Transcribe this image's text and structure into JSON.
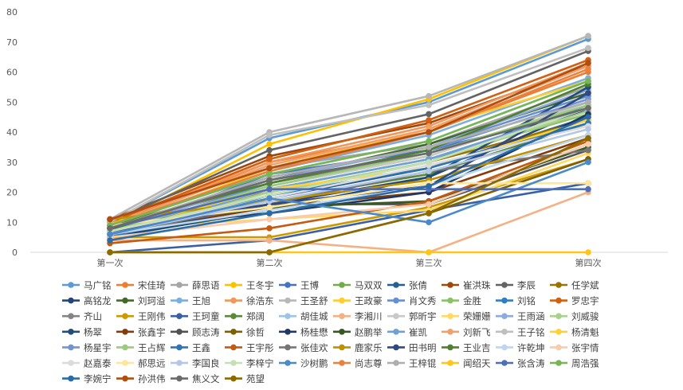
{
  "chart_data": {
    "type": "line",
    "title": "",
    "xlabel": "",
    "ylabel": "",
    "categories": [
      "第一次",
      "第二次",
      "第三次",
      "第四次"
    ],
    "ylim": [
      0,
      80
    ],
    "yticks": [
      0,
      10,
      20,
      30,
      40,
      50,
      60,
      70,
      80
    ],
    "grid": false,
    "legend_position": "bottom",
    "series": [
      {
        "name": "马广铭",
        "color": "#5B9BD5",
        "values": [
          10,
          38,
          50,
          71
        ]
      },
      {
        "name": "宋佳琦",
        "color": "#ED7D31",
        "values": [
          9,
          30,
          40,
          60
        ]
      },
      {
        "name": "薛思语",
        "color": "#A5A5A5",
        "values": [
          8,
          28,
          36,
          55
        ]
      },
      {
        "name": "王冬宇",
        "color": "#FFC000",
        "values": [
          9,
          36,
          51,
          72
        ]
      },
      {
        "name": "王博",
        "color": "#4472C4",
        "values": [
          6,
          26,
          34,
          47
        ]
      },
      {
        "name": "马双双",
        "color": "#70AD47",
        "values": [
          7,
          22,
          32,
          50
        ]
      },
      {
        "name": "张倩",
        "color": "#255E91",
        "values": [
          5,
          18,
          28,
          45
        ]
      },
      {
        "name": "崔洪珠",
        "color": "#9E480E",
        "values": [
          11,
          32,
          43,
          62
        ]
      },
      {
        "name": "李辰",
        "color": "#636363",
        "values": [
          10,
          34,
          46,
          67
        ]
      },
      {
        "name": "任学斌",
        "color": "#997300",
        "values": [
          8,
          20,
          30,
          44
        ]
      },
      {
        "name": "高铭龙",
        "color": "#264478",
        "values": [
          5,
          16,
          25,
          48
        ]
      },
      {
        "name": "刘珂溢",
        "color": "#43682B",
        "values": [
          7,
          24,
          36,
          53
        ]
      },
      {
        "name": "王旭",
        "color": "#7CAFDD",
        "values": [
          9,
          27,
          39,
          58
        ]
      },
      {
        "name": "徐浩东",
        "color": "#F1975A",
        "values": [
          10,
          30,
          42,
          63
        ]
      },
      {
        "name": "王圣舒",
        "color": "#B7B7B7",
        "values": [
          11,
          40,
          52,
          72
        ]
      },
      {
        "name": "王政豪",
        "color": "#FFCD33",
        "values": [
          8,
          28,
          41,
          57
        ]
      },
      {
        "name": "肖文秀",
        "color": "#698ED0",
        "values": [
          7,
          25,
          35,
          52
        ]
      },
      {
        "name": "金胜",
        "color": "#8CC168",
        "values": [
          6,
          21,
          31,
          46
        ]
      },
      {
        "name": "刘铭",
        "color": "#327DC2",
        "values": [
          5,
          19,
          30,
          49
        ]
      },
      {
        "name": "罗忠宇",
        "color": "#D26012",
        "values": [
          10,
          31,
          44,
          64
        ]
      },
      {
        "name": "齐山",
        "color": "#848484",
        "values": [
          8,
          23,
          33,
          48
        ]
      },
      {
        "name": "王刚伟",
        "color": "#CC9A00",
        "values": [
          5,
          5,
          15,
          31
        ]
      },
      {
        "name": "王珂童",
        "color": "#3A5FA5",
        "values": [
          0,
          4,
          14,
          23
        ]
      },
      {
        "name": "郑阔",
        "color": "#5A8A39",
        "values": [
          8,
          17,
          26,
          43
        ]
      },
      {
        "name": "胡佳城",
        "color": "#9DC3E6",
        "values": [
          9,
          26,
          37,
          57
        ]
      },
      {
        "name": "李湘川",
        "color": "#F4B183",
        "values": [
          4,
          4,
          0,
          20
        ]
      },
      {
        "name": "郭昕宇",
        "color": "#C9C9C9",
        "values": [
          7,
          22,
          32,
          50
        ]
      },
      {
        "name": "荣姗姗",
        "color": "#FFD966",
        "values": [
          8,
          11,
          14,
          33
        ]
      },
      {
        "name": "王雨涵",
        "color": "#8FAADC",
        "values": [
          7,
          24,
          35,
          54
        ]
      },
      {
        "name": "刘威骏",
        "color": "#A9D18E",
        "values": [
          6,
          20,
          30,
          47
        ]
      },
      {
        "name": "杨翠",
        "color": "#1F4E79",
        "values": [
          5,
          14,
          25,
          55
        ]
      },
      {
        "name": "张鑫宇",
        "color": "#843C0C",
        "values": [
          6,
          15,
          20,
          38
        ]
      },
      {
        "name": "顾志涛",
        "color": "#525252",
        "values": [
          8,
          16,
          16,
          34
        ]
      },
      {
        "name": "徐哲",
        "color": "#7F6000",
        "values": [
          0,
          0,
          13,
          31
        ]
      },
      {
        "name": "杨桂懋",
        "color": "#203864",
        "values": [
          8,
          13,
          20,
          46
        ]
      },
      {
        "name": "赵鹏举",
        "color": "#385723",
        "values": [
          8,
          15,
          17,
          35
        ]
      },
      {
        "name": "崔凯",
        "color": "#6FA0D6",
        "values": [
          5,
          21,
          31,
          48
        ]
      },
      {
        "name": "刘新飞",
        "color": "#F2A06B",
        "values": [
          9,
          29,
          41,
          62
        ]
      },
      {
        "name": "王子铭",
        "color": "#BFBFBF",
        "values": [
          10,
          39,
          49,
          68
        ]
      },
      {
        "name": "杨清魁",
        "color": "#FFD233",
        "values": [
          7,
          21,
          28,
          44
        ]
      },
      {
        "name": "杨星宇",
        "color": "#7094D4",
        "values": [
          6,
          23,
          34,
          51
        ]
      },
      {
        "name": "王占辉",
        "color": "#9ACC7B",
        "values": [
          7,
          22,
          33,
          49
        ]
      },
      {
        "name": "王鑫",
        "color": "#2E75B6",
        "values": [
          5,
          19,
          28,
          43
        ]
      },
      {
        "name": "王宇彤",
        "color": "#C55A11",
        "values": [
          3,
          8,
          17,
          37
        ]
      },
      {
        "name": "张佳欢",
        "color": "#767676",
        "values": [
          6,
          16,
          27,
          34
        ]
      },
      {
        "name": "鹿家乐",
        "color": "#BF9000",
        "values": [
          11,
          17,
          24,
          39
        ]
      },
      {
        "name": "田书明",
        "color": "#2F4A80",
        "values": [
          7,
          16,
          22,
          53
        ]
      },
      {
        "name": "王业吉",
        "color": "#4F7F2F",
        "values": [
          9,
          23,
          34,
          56
        ]
      },
      {
        "name": "许乾坤",
        "color": "#BDD7EE",
        "values": [
          6,
          14,
          22,
          39
        ]
      },
      {
        "name": "张宇情",
        "color": "#F8CBAD",
        "values": [
          5,
          11,
          16,
          36
        ]
      },
      {
        "name": "赵嘉泰",
        "color": "#DBDBDB",
        "values": [
          7,
          18,
          29,
          42
        ]
      },
      {
        "name": "郝思远",
        "color": "#FFE699",
        "values": [
          9,
          15,
          23,
          23
        ]
      },
      {
        "name": "李国良",
        "color": "#B4C7E7",
        "values": [
          6,
          17,
          27,
          41
        ]
      },
      {
        "name": "李梓宁",
        "color": "#C5E0B4",
        "values": [
          7,
          19,
          30,
          48
        ]
      },
      {
        "name": "沙树鹏",
        "color": "#4A8AC9",
        "values": [
          6,
          18,
          10,
          30
        ]
      },
      {
        "name": "尚志尊",
        "color": "#E8823E",
        "values": [
          9,
          27,
          40,
          61
        ]
      },
      {
        "name": "王梓锟",
        "color": "#AEAEAE",
        "values": [
          8,
          25,
          35,
          50
        ]
      },
      {
        "name": "闻绍天",
        "color": "#FFC617",
        "values": [
          0,
          0,
          0,
          0
        ]
      },
      {
        "name": "张含涛",
        "color": "#4F6DB8",
        "values": [
          8,
          21,
          21,
          21
        ]
      },
      {
        "name": "周浩强",
        "color": "#78B655",
        "values": [
          9,
          26,
          37,
          57
        ]
      },
      {
        "name": "李婉宁",
        "color": "#2A6CA8",
        "values": [
          4,
          13,
          22,
          45
        ]
      },
      {
        "name": "孙洪伟",
        "color": "#B04E0F",
        "values": [
          11,
          28,
          40,
          63
        ]
      },
      {
        "name": "焦义文",
        "color": "#6B6B6B",
        "values": [
          8,
          24,
          33,
          48
        ]
      },
      {
        "name": "苑望",
        "color": "#8C6A00",
        "values": [
          0,
          0,
          13,
          38
        ]
      }
    ]
  }
}
